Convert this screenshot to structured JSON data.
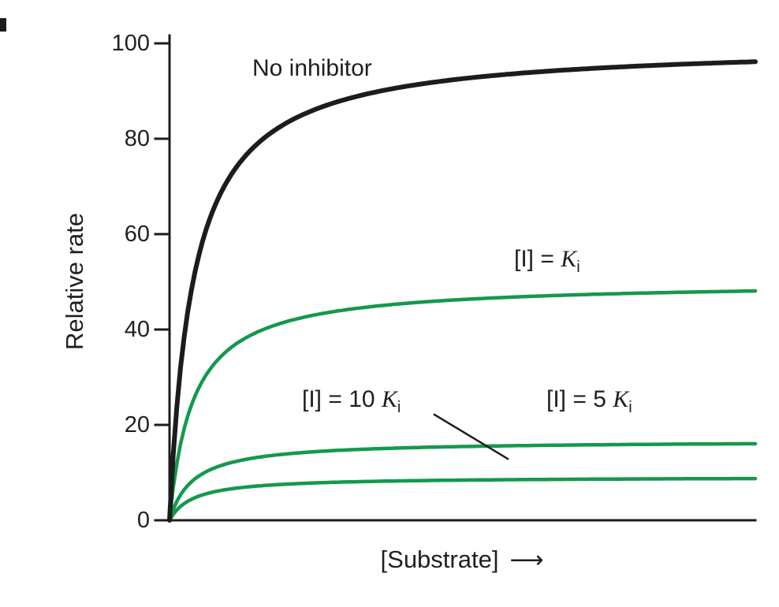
{
  "chart_data": {
    "type": "line",
    "title": "",
    "xlabel": "[Substrate]",
    "xlabel_arrow": "⟶",
    "ylabel": "Relative rate",
    "ylim": [
      0,
      100
    ],
    "yticks": [
      0,
      20,
      40,
      60,
      80,
      100
    ],
    "x_tick_labels_shown": false,
    "grid": false,
    "legend": "none",
    "model": "michaelis_menten_noncompetitive_inhibition",
    "km": 1,
    "s_max": 25,
    "x_sample_km_units": [
      0,
      1,
      2,
      5,
      10,
      25
    ],
    "series": [
      {
        "id": "no-inhibitor",
        "name": "No inhibitor",
        "vmax": 100,
        "color": "#1c1c1c",
        "width": 6,
        "values": [
          0,
          50,
          66.7,
          83.3,
          90.9,
          96.2
        ]
      },
      {
        "id": "i-equals-ki",
        "name": "[I] = Ki",
        "vmax": 50,
        "color": "#13994d",
        "width": 4.5,
        "values": [
          0,
          25,
          33.3,
          41.7,
          45.5,
          48.1
        ]
      },
      {
        "id": "i-equals-5ki",
        "name": "[I] = 5 Ki",
        "vmax": 16.7,
        "color": "#13994d",
        "width": 4.5,
        "values": [
          0,
          8.3,
          11.1,
          13.9,
          15.2,
          16.0
        ]
      },
      {
        "id": "i-equals-10ki",
        "name": "[I] = 10 Ki",
        "vmax": 9.1,
        "color": "#13994d",
        "width": 4.5,
        "values": [
          0,
          4.5,
          6.1,
          7.6,
          8.3,
          8.7
        ]
      }
    ]
  },
  "annotations": {
    "no_inhibitor": "No inhibitor",
    "ki": {
      "prefix": "[I] = ",
      "k": "K",
      "sub": "i"
    },
    "ki10": {
      "prefix": "[I] = 10 ",
      "k": "K",
      "sub": "i"
    },
    "ki5": {
      "prefix": "[I] = 5 ",
      "k": "K",
      "sub": "i"
    }
  },
  "colors": {
    "axis": "#1c1c1c",
    "curve_black": "#1c1c1c",
    "curve_green": "#13994d",
    "text": "#1f1f1f",
    "background": "#ffffff"
  }
}
